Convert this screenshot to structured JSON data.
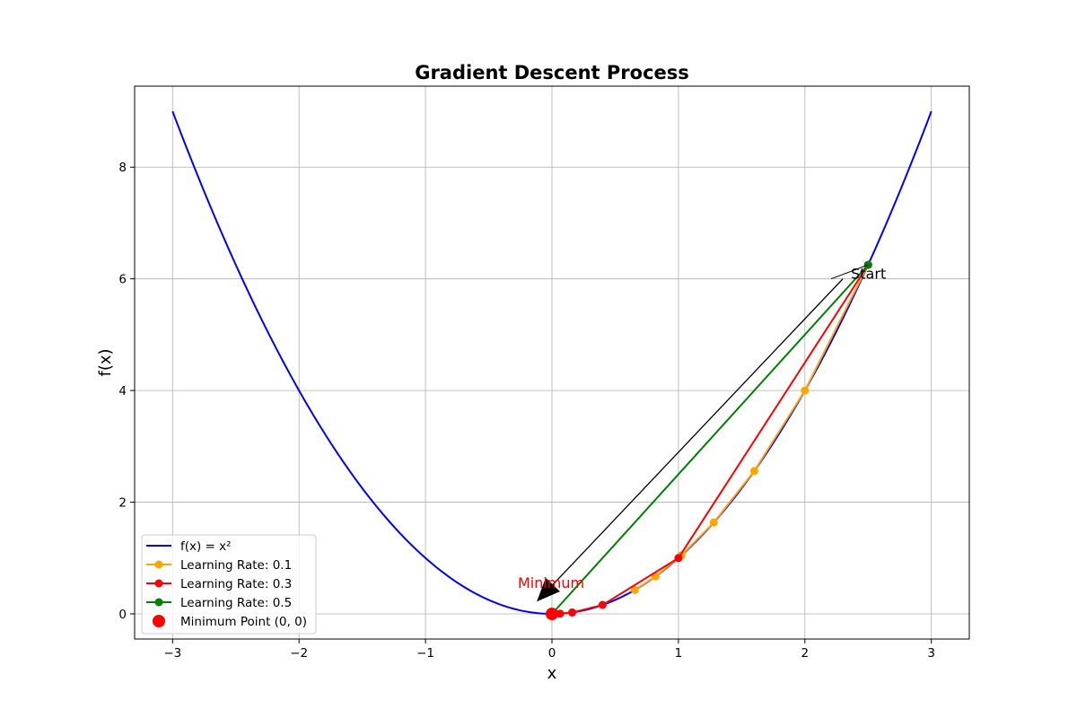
{
  "chart_data": {
    "type": "line",
    "title": "Gradient Descent Process",
    "xlabel": "x",
    "ylabel": "f(x)",
    "xlim": [
      -3.3,
      3.3
    ],
    "ylim": [
      -0.45,
      9.45
    ],
    "xticks": [
      -3,
      -2,
      -1,
      0,
      1,
      2,
      3
    ],
    "xtick_labels": [
      "−3",
      "−2",
      "−1",
      "0",
      "1",
      "2",
      "3"
    ],
    "yticks": [
      0,
      2,
      4,
      6,
      8
    ],
    "ytick_labels": [
      "0",
      "2",
      "4",
      "6",
      "8"
    ],
    "grid": true,
    "legend_position": "lower-left",
    "curve": {
      "name": "f(x) = x²",
      "color": "#0000ff",
      "x_range": [
        -3,
        3
      ]
    },
    "series": [
      {
        "name": "Learning Rate: 0.1",
        "color": "#ffa500",
        "x": [
          2.5,
          2.0,
          1.6,
          1.28,
          1.024,
          0.8192,
          0.6554
        ],
        "y": [
          6.25,
          4.0,
          2.56,
          1.638,
          1.049,
          0.671,
          0.4295
        ]
      },
      {
        "name": "Learning Rate: 0.3",
        "color": "#ff0000",
        "x": [
          2.5,
          1.0,
          0.4,
          0.16,
          0.064
        ],
        "y": [
          6.25,
          1.0,
          0.16,
          0.0256,
          0.0041
        ]
      },
      {
        "name": "Learning Rate: 0.5",
        "color": "#008000",
        "x": [
          2.5,
          0.0
        ],
        "y": [
          6.25,
          0.0
        ]
      }
    ],
    "minimum_point": {
      "name": "Minimum Point (0, 0)",
      "x": 0,
      "y": 0,
      "color": "#ff0000"
    },
    "annotations": [
      {
        "text": "Start",
        "x": 2.35,
        "y": 6.0,
        "arrow_to": {
          "x": 2.5,
          "y": 6.25
        },
        "color": "#000000"
      },
      {
        "text": "Minimum",
        "x": -0.27,
        "y": 0.5,
        "arrow_from": {
          "x": 2.3,
          "y": 6.0
        },
        "arrow_to": {
          "x": -0.12,
          "y": 0.22
        },
        "color": "#ff0000"
      }
    ]
  }
}
